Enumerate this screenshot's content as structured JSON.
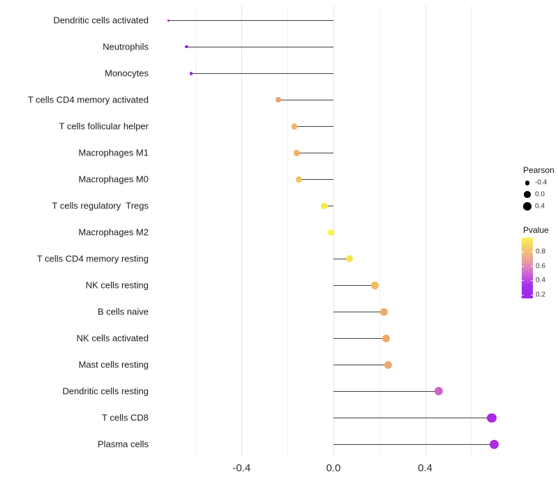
{
  "chart_data": {
    "type": "scatter",
    "subtype": "lollipop",
    "orientation": "horizontal",
    "title": "",
    "xlabel": "",
    "ylabel": "",
    "xlim": [
      -0.79,
      0.78
    ],
    "grid": "vertical-only",
    "x_major_ticks": [
      -0.4,
      0,
      0.4
    ],
    "x_major_tick_labels": [
      "-0.4",
      "0.0",
      "0.4"
    ],
    "x_minor_ticks": [
      -0.6,
      -0.2,
      0.2,
      0.6
    ],
    "categories": [
      "Dendritic cells activated",
      "Neutrophils",
      "Monocytes",
      "T cells CD4 memory activated",
      "T cells follicular helper",
      "Macrophages M1",
      "Macrophages M0",
      "T cells regulatory  Tregs",
      "Macrophages M2",
      "T cells CD4 memory resting",
      "NK cells resting",
      "B cells naive",
      "NK cells activated",
      "Mast cells resting",
      "Dendritic cells resting",
      "T cells CD8",
      "Plasma cells"
    ],
    "points": [
      {
        "label": "Dendritic cells activated",
        "pearson": -0.72,
        "pvalue": 0.17,
        "color": "#9B1ED6"
      },
      {
        "label": "Neutrophils",
        "pearson": -0.64,
        "pvalue": 0.18,
        "color": "#A023DC"
      },
      {
        "label": "Monocytes",
        "pearson": -0.62,
        "pvalue": 0.18,
        "color": "#A327DE"
      },
      {
        "label": "T cells CD4 memory activated",
        "pearson": -0.24,
        "pvalue": 0.67,
        "color": "#E9A376"
      },
      {
        "label": "T cells follicular helper",
        "pearson": -0.17,
        "pvalue": 0.74,
        "color": "#F0B566"
      },
      {
        "label": "Macrophages M1",
        "pearson": -0.16,
        "pvalue": 0.75,
        "color": "#F0B364"
      },
      {
        "label": "Macrophages M0",
        "pearson": -0.15,
        "pvalue": 0.8,
        "color": "#F1C35F"
      },
      {
        "label": "T cells regulatory  Tregs",
        "pearson": -0.04,
        "pvalue": 0.92,
        "color": "#F7EA43"
      },
      {
        "label": "Macrophages M2",
        "pearson": -0.01,
        "pvalue": 0.97,
        "color": "#FAF43C"
      },
      {
        "label": "T cells CD4 memory resting",
        "pearson": 0.07,
        "pvalue": 0.89,
        "color": "#F8E34C"
      },
      {
        "label": "NK cells resting",
        "pearson": 0.18,
        "pvalue": 0.78,
        "color": "#F2BB62"
      },
      {
        "label": "B cells naive",
        "pearson": 0.22,
        "pvalue": 0.73,
        "color": "#EFAC68"
      },
      {
        "label": "NK cells activated",
        "pearson": 0.23,
        "pvalue": 0.72,
        "color": "#F0A966"
      },
      {
        "label": "Mast cells resting",
        "pearson": 0.24,
        "pvalue": 0.71,
        "color": "#EFAA6C"
      },
      {
        "label": "Dendritic cells resting",
        "pearson": 0.46,
        "pvalue": 0.44,
        "color": "#CF63C5"
      },
      {
        "label": "T cells CD8",
        "pearson": 0.69,
        "pvalue": 0.19,
        "color": "#A826E4"
      },
      {
        "label": "Plasma cells",
        "pearson": 0.7,
        "pvalue": 0.19,
        "color": "#AA2BE3"
      }
    ],
    "size_scale": {
      "title": "Pearson",
      "breaks": [
        -0.4,
        0,
        0.4
      ],
      "labels": [
        "-0.4",
        "0.0",
        "0.4"
      ],
      "dot_color": "#000000"
    },
    "color_scale": {
      "title": "Pvalue",
      "breaks": [
        0.8,
        0.6,
        0.4,
        0.2
      ],
      "labels": [
        "0.8",
        "0.6",
        "0.4",
        "0.2"
      ],
      "domain": [
        0.15,
        1.0
      ],
      "gradient_top_to_bottom": [
        "#FBF14F",
        "#F2C471",
        "#EA9AA4",
        "#CE63D8",
        "#A52FEA",
        "#9F28EC"
      ]
    },
    "legend_position": "right"
  },
  "colors": {
    "background": "#FFFFFF",
    "stem": "#3F3F3F",
    "gridline_minor": "#EFEFEF",
    "gridline_major": "#E4E4E4",
    "axis_text": "#2B2B2B",
    "category_text": "#1B1B1B"
  }
}
